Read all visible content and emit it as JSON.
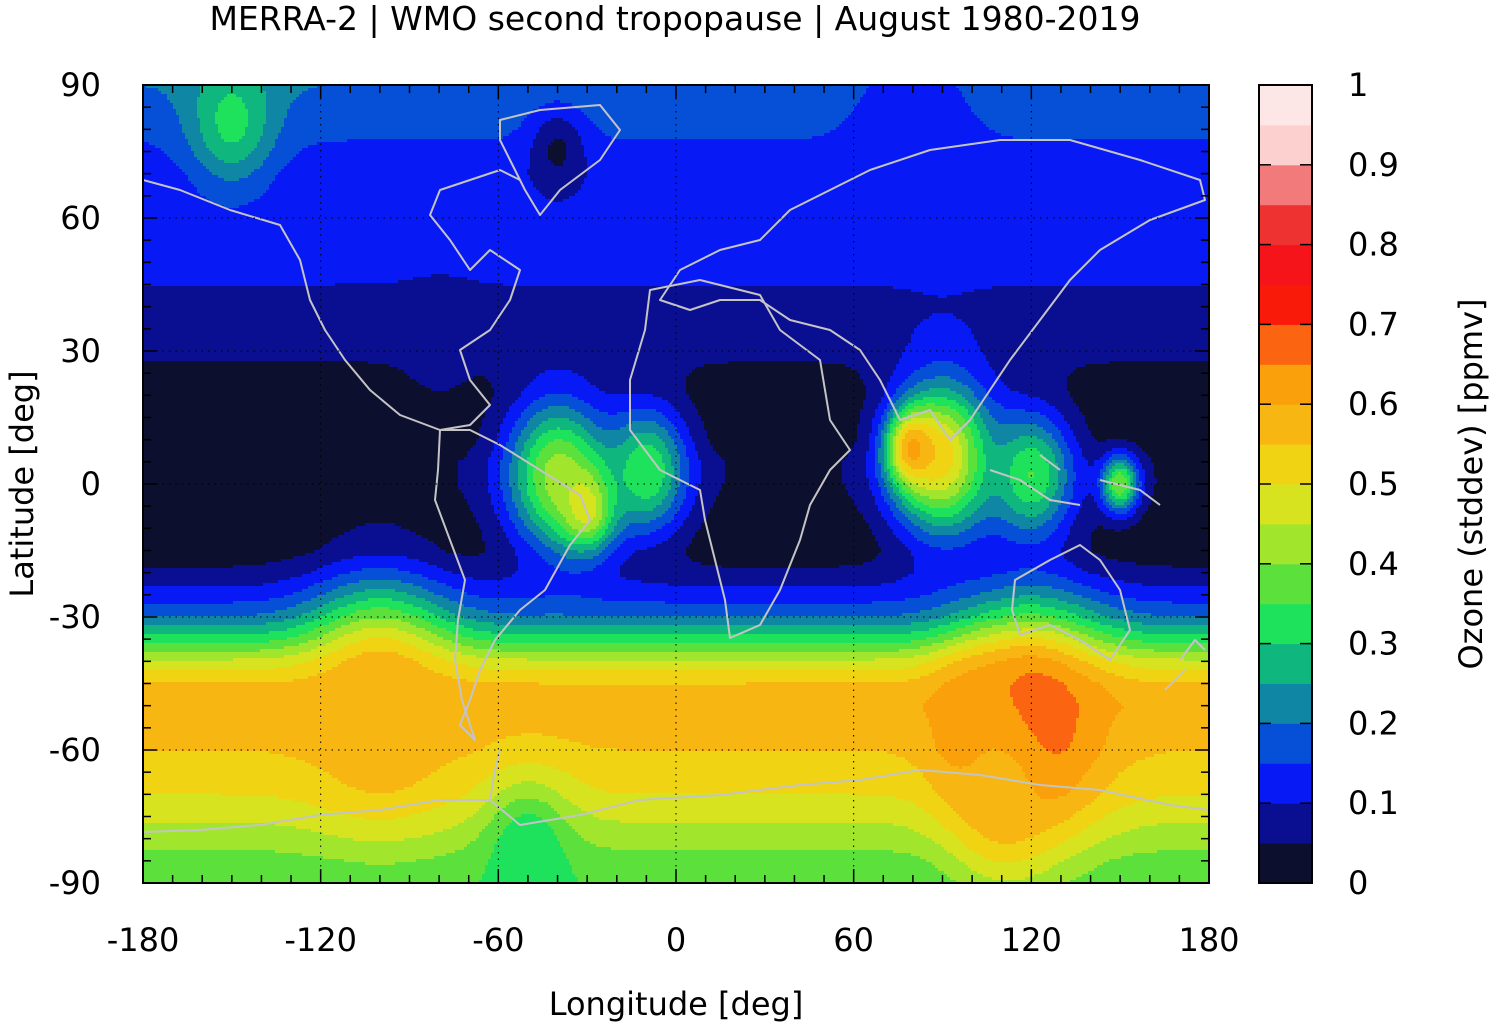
{
  "chart_data": {
    "type": "heatmap",
    "title": "MERRA-2 | WMO second tropopause | August 1980-2019",
    "xlabel": "Longitude [deg]",
    "ylabel": "Latitude [deg]",
    "xlim": [
      -180,
      180
    ],
    "ylim": [
      -90,
      90
    ],
    "xticks": [
      -180,
      -120,
      -60,
      0,
      60,
      120,
      180
    ],
    "yticks": [
      -90,
      -60,
      -30,
      0,
      30,
      60,
      90
    ],
    "xtick_labels": [
      "-180",
      "-120",
      "-60",
      "0",
      "60",
      "120",
      "180"
    ],
    "ytick_labels": [
      "-90",
      "-60",
      "-30",
      "0",
      "30",
      "60",
      "90"
    ],
    "grid": true,
    "colorbar": {
      "label": "Ozone (stddev) [ppmv]",
      "min": 0,
      "max": 1,
      "step": 0.05,
      "tick_values": [
        0,
        0.1,
        0.2,
        0.3,
        0.4,
        0.5,
        0.6,
        0.7,
        0.8,
        0.9,
        1
      ],
      "tick_labels": [
        "0",
        "0.1",
        "0.2",
        "0.3",
        "0.4",
        "0.5",
        "0.6",
        "0.7",
        "0.8",
        "0.9",
        "1"
      ],
      "colors": [
        "#0d0f2e",
        "#0a0e91",
        "#0719f5",
        "#0550d6",
        "#0f86a3",
        "#0fb77e",
        "#1ee25b",
        "#5ce13c",
        "#a1e62c",
        "#d6e31e",
        "#f0d414",
        "#f7b611",
        "#faa00a",
        "#fb6410",
        "#fa1a0a",
        "#f5141a",
        "#ee3131",
        "#f37a7a",
        "#fdd0d0",
        "#fde6e6"
      ]
    },
    "zonal_mean_profile": {
      "lat": [
        -90,
        -85,
        -80,
        -75,
        -70,
        -65,
        -60,
        -55,
        -50,
        -45,
        -40,
        -35,
        -30,
        -25,
        -20,
        -15,
        -10,
        -5,
        0,
        5,
        10,
        15,
        20,
        25,
        30,
        35,
        40,
        45,
        50,
        55,
        60,
        65,
        70,
        75,
        80,
        85,
        90
      ],
      "stddev": [
        0.36,
        0.38,
        0.42,
        0.46,
        0.5,
        0.52,
        0.55,
        0.56,
        0.58,
        0.55,
        0.46,
        0.32,
        0.2,
        0.12,
        0.06,
        0.02,
        0.02,
        0.03,
        0.04,
        0.04,
        0.02,
        0.02,
        0.02,
        0.04,
        0.06,
        0.08,
        0.09,
        0.1,
        0.11,
        0.12,
        0.12,
        0.12,
        0.12,
        0.14,
        0.16,
        0.18,
        0.2
      ]
    },
    "regional_features": [
      {
        "lon": -40,
        "lat": 2,
        "radius_deg": 22,
        "value": 0.42
      },
      {
        "lon": -30,
        "lat": -5,
        "radius_deg": 12,
        "value": 0.5
      },
      {
        "lon": -10,
        "lat": 3,
        "radius_deg": 18,
        "value": 0.35
      },
      {
        "lon": 90,
        "lat": 6,
        "radius_deg": 22,
        "value": 0.52
      },
      {
        "lon": 80,
        "lat": 8,
        "radius_deg": 10,
        "value": 0.62
      },
      {
        "lon": 120,
        "lat": 2,
        "radius_deg": 18,
        "value": 0.35
      },
      {
        "lon": 150,
        "lat": 0,
        "radius_deg": 8,
        "value": 0.4
      },
      {
        "lon": 120,
        "lat": -55,
        "radius_deg": 30,
        "value": 0.7
      },
      {
        "lon": 100,
        "lat": -55,
        "radius_deg": 18,
        "value": 0.64
      },
      {
        "lon": -100,
        "lat": -50,
        "radius_deg": 30,
        "value": 0.6
      },
      {
        "lon": -50,
        "lat": -83,
        "radius_deg": 18,
        "value": 0.3
      },
      {
        "lon": 110,
        "lat": -70,
        "radius_deg": 22,
        "value": 0.58
      },
      {
        "lon": -150,
        "lat": 82,
        "radius_deg": 18,
        "value": 0.32
      },
      {
        "lon": -40,
        "lat": 75,
        "radius_deg": 12,
        "value": 0.04
      },
      {
        "lon": 80,
        "lat": 82,
        "radius_deg": 25,
        "value": 0.1
      },
      {
        "lon": -80,
        "lat": 30,
        "radius_deg": 15,
        "value": 0.07
      }
    ]
  }
}
